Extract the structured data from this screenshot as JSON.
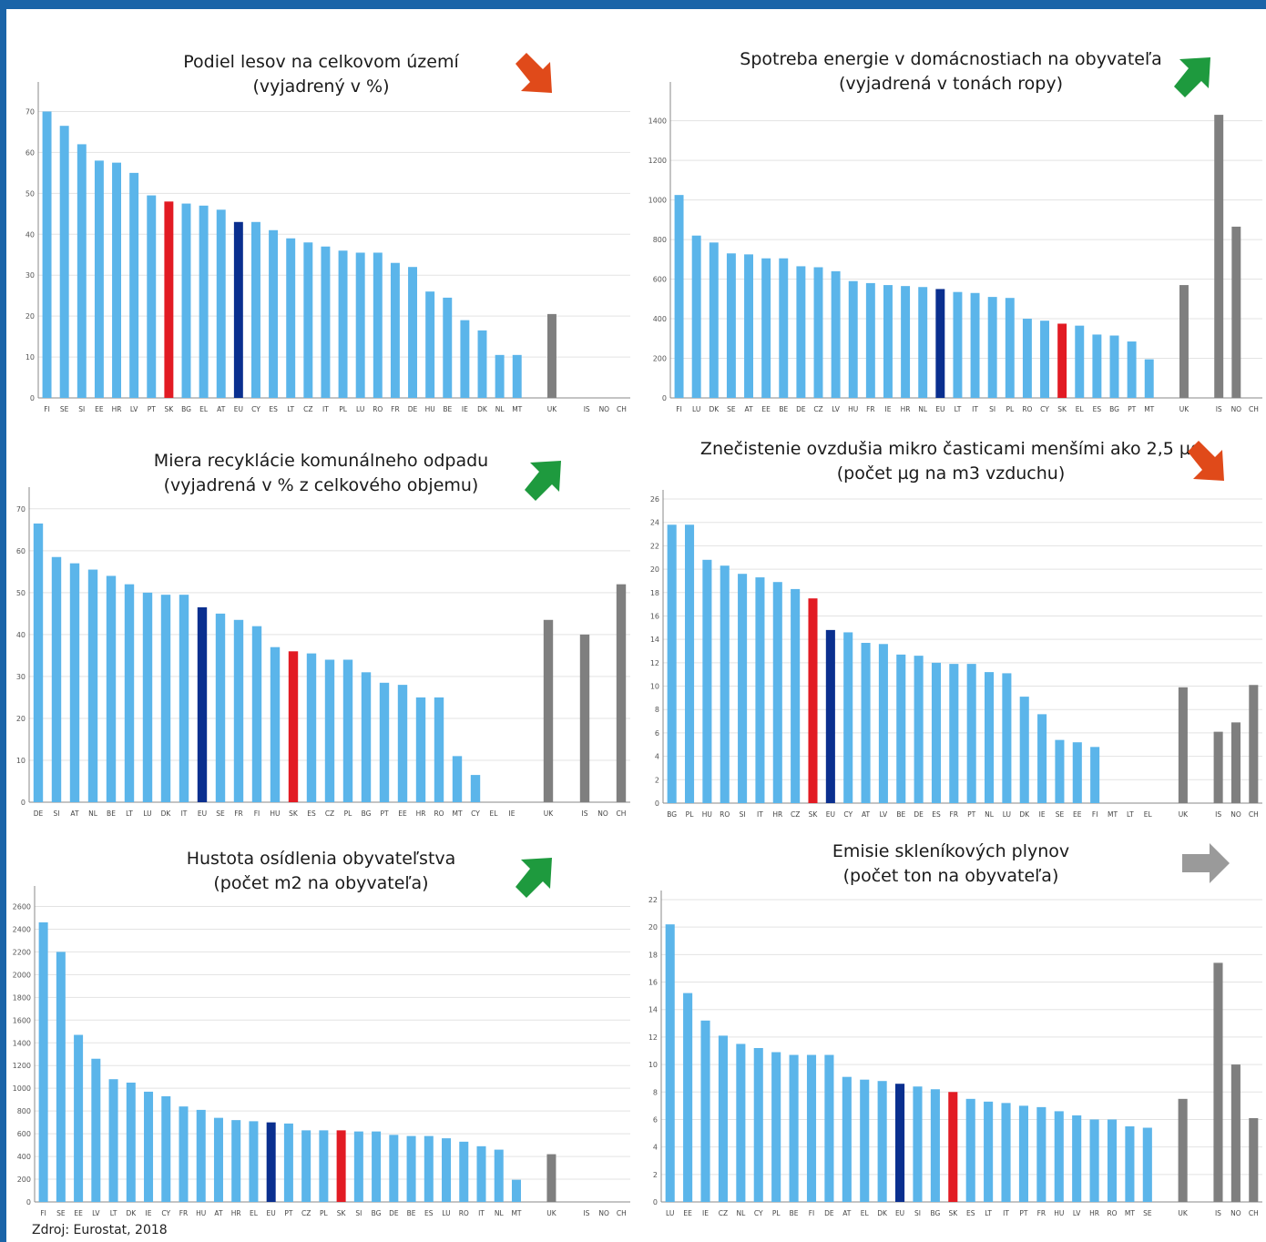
{
  "source": "Zdroj: Eurostat, 2018",
  "colors": {
    "normal": "#5bb5ea",
    "highlight_sk": "#e21b23",
    "eu": "#0a2f8f",
    "non_eu": "#7f7f7f",
    "grid": "#e3e3e3",
    "axis": "#888888"
  },
  "panels": [
    {
      "title_line1": "Podiel lesov na celkovom území",
      "title_line2": "(vyjadrený v %)",
      "trend": "down",
      "trend_icon": "arrow-down-right-icon",
      "trend_color": "#e04a1a"
    },
    {
      "title_line1": "Spotreba energie v domácnostiach na obyvateľa",
      "title_line2": "(vyjadrená v tonách ropy)",
      "trend": "up",
      "trend_icon": "arrow-up-right-icon",
      "trend_color": "#1e9a3e"
    },
    {
      "title_line1": "Miera recyklácie komunálneho odpadu",
      "title_line2": "(vyjadrená v % z celkového objemu)",
      "trend": "up",
      "trend_icon": "arrow-up-right-icon",
      "trend_color": "#1e9a3e"
    },
    {
      "title_line1": "Znečistenie ovzdušia mikro časticami menšími ako 2,5 µg",
      "title_line2": "(počet µg na m3 vzduchu)",
      "trend": "down",
      "trend_icon": "arrow-down-right-icon",
      "trend_color": "#e04a1a"
    },
    {
      "title_line1": "Hustota osídlenia obyvateľstva",
      "title_line2": "(počet m2 na obyvateľa)",
      "trend": "up",
      "trend_icon": "arrow-up-right-icon",
      "trend_color": "#1e9a3e"
    },
    {
      "title_line1": "Emisie skleníkových plynov",
      "title_line2": "(počet ton na obyvateľa)",
      "trend": "right",
      "trend_icon": "arrow-right-icon",
      "trend_color": "#9a9a9a"
    }
  ],
  "chart_data": [
    {
      "type": "bar",
      "title": "Podiel lesov na celkovom území (vyjadrený v %)",
      "ylim": [
        0,
        75
      ],
      "yticks": [
        0,
        10,
        20,
        30,
        40,
        50,
        60,
        70
      ],
      "categories": [
        "FI",
        "SE",
        "SI",
        "EE",
        "HR",
        "LV",
        "PT",
        "SK",
        "BG",
        "EL",
        "AT",
        "EU",
        "CY",
        "ES",
        "LT",
        "CZ",
        "IT",
        "PL",
        "LU",
        "RO",
        "FR",
        "DE",
        "HU",
        "BE",
        "IE",
        "DK",
        "NL",
        "MT",
        "",
        "UK",
        "",
        "IS",
        "NO",
        "CH"
      ],
      "values": [
        70,
        66.5,
        62,
        58,
        57.5,
        55,
        49.5,
        48,
        47.5,
        47,
        46,
        43,
        43,
        41,
        39,
        38,
        37,
        36,
        35.5,
        35.5,
        33,
        32,
        26,
        24.5,
        19,
        16.5,
        10.5,
        10.5,
        null,
        20.5,
        null,
        null,
        null,
        null
      ],
      "highlights": {
        "SK": "highlight_sk",
        "EU": "eu",
        "UK": "non_eu",
        "IS": "non_eu",
        "NO": "non_eu",
        "CH": "non_eu"
      }
    },
    {
      "type": "bar",
      "title": "Spotreba energie v domácnostiach na obyvateľa (vyjadrená v tonách ropy)",
      "ylim": [
        0,
        1550
      ],
      "yticks": [
        0,
        200,
        400,
        600,
        800,
        1000,
        1200,
        1400
      ],
      "categories": [
        "FI",
        "LU",
        "DK",
        "SE",
        "AT",
        "EE",
        "BE",
        "DE",
        "CZ",
        "LV",
        "HU",
        "FR",
        "IE",
        "HR",
        "NL",
        "EU",
        "LT",
        "IT",
        "SI",
        "PL",
        "RO",
        "CY",
        "SK",
        "EL",
        "ES",
        "BG",
        "PT",
        "MT",
        "",
        "UK",
        "",
        "IS",
        "NO",
        "CH"
      ],
      "values": [
        1025,
        820,
        785,
        730,
        725,
        705,
        705,
        665,
        660,
        640,
        590,
        580,
        570,
        565,
        560,
        550,
        535,
        530,
        510,
        505,
        400,
        390,
        375,
        365,
        320,
        315,
        285,
        195,
        null,
        570,
        null,
        1430,
        865,
        null
      ],
      "highlights": {
        "SK": "highlight_sk",
        "EU": "eu",
        "UK": "non_eu",
        "IS": "non_eu",
        "NO": "non_eu",
        "CH": "non_eu"
      }
    },
    {
      "type": "bar",
      "title": "Miera recyklácie komunálneho odpadu (vyjadrená v % z celkového objemu)",
      "ylim": [
        0,
        73
      ],
      "yticks": [
        0,
        10,
        20,
        30,
        40,
        50,
        60,
        70
      ],
      "categories": [
        "DE",
        "SI",
        "AT",
        "NL",
        "BE",
        "LT",
        "LU",
        "DK",
        "IT",
        "EU",
        "SE",
        "FR",
        "FI",
        "HU",
        "SK",
        "ES",
        "CZ",
        "PL",
        "BG",
        "PT",
        "EE",
        "HR",
        "RO",
        "MT",
        "CY",
        "EL",
        "IE",
        "",
        "UK",
        "",
        "IS",
        "NO",
        "CH"
      ],
      "values": [
        66.5,
        58.5,
        57,
        55.5,
        54,
        52,
        50,
        49.5,
        49.5,
        46.5,
        45,
        43.5,
        42,
        37,
        36,
        35.5,
        34,
        34,
        31,
        28.5,
        28,
        25,
        25,
        11,
        6.5,
        null,
        null,
        null,
        43.5,
        null,
        40,
        null,
        52
      ],
      "highlights": {
        "SK": "highlight_sk",
        "EU": "eu",
        "UK": "non_eu",
        "IS": "non_eu",
        "NO": "non_eu",
        "CH": "non_eu"
      }
    },
    {
      "type": "bar",
      "title": "Znečistenie ovzdušia mikro časticami menšími ako 2,5 µg (počet µg na m3 vzduchu)",
      "ylim": [
        0,
        26
      ],
      "yticks": [
        0,
        2,
        4,
        6,
        8,
        10,
        12,
        14,
        16,
        18,
        20,
        22,
        24,
        26
      ],
      "categories": [
        "BG",
        "PL",
        "HU",
        "RO",
        "SI",
        "IT",
        "HR",
        "CZ",
        "SK",
        "EU",
        "CY",
        "AT",
        "LV",
        "BE",
        "DE",
        "ES",
        "FR",
        "PT",
        "NL",
        "LU",
        "DK",
        "IE",
        "SE",
        "EE",
        "FI",
        "MT",
        "LT",
        "EL",
        "",
        "UK",
        "",
        "IS",
        "NO",
        "CH"
      ],
      "values": [
        23.8,
        23.8,
        20.8,
        20.3,
        19.6,
        19.3,
        18.9,
        18.3,
        17.5,
        14.8,
        14.6,
        13.7,
        13.6,
        12.7,
        12.6,
        12,
        11.9,
        11.9,
        11.2,
        11.1,
        9.1,
        7.6,
        5.4,
        5.2,
        4.8,
        null,
        null,
        null,
        null,
        9.9,
        null,
        6.1,
        6.9,
        10.1
      ],
      "highlights": {
        "SK": "highlight_sk",
        "EU": "eu",
        "UK": "non_eu",
        "IS": "non_eu",
        "NO": "non_eu",
        "CH": "non_eu"
      }
    },
    {
      "type": "bar",
      "title": "Hustota osídlenia obyvateľstva (počet m2 na obyvateľa)",
      "ylim": [
        0,
        2700
      ],
      "yticks": [
        0,
        200,
        400,
        600,
        800,
        1000,
        1200,
        1400,
        1600,
        1800,
        2000,
        2200,
        2400,
        2600
      ],
      "categories": [
        "FI",
        "SE",
        "EE",
        "LV",
        "LT",
        "DK",
        "IE",
        "CY",
        "FR",
        "HU",
        "AT",
        "HR",
        "EL",
        "EU",
        "PT",
        "CZ",
        "PL",
        "SK",
        "SI",
        "BG",
        "DE",
        "BE",
        "ES",
        "LU",
        "RO",
        "IT",
        "NL",
        "MT",
        "",
        "UK",
        "",
        "IS",
        "NO",
        "CH"
      ],
      "values": [
        2460,
        2200,
        1470,
        1260,
        1080,
        1050,
        970,
        930,
        840,
        810,
        740,
        720,
        710,
        700,
        690,
        630,
        630,
        630,
        620,
        620,
        590,
        580,
        580,
        560,
        530,
        490,
        460,
        195,
        null,
        420,
        null,
        null,
        null,
        null
      ],
      "highlights": {
        "SK": "highlight_sk",
        "EU": "eu",
        "UK": "non_eu",
        "IS": "non_eu",
        "NO": "non_eu",
        "CH": "non_eu"
      }
    },
    {
      "type": "bar",
      "title": "Emisie skleníkových plynov (počet ton na obyvateľa)",
      "ylim": [
        0,
        22
      ],
      "yticks": [
        0,
        2,
        4,
        6,
        8,
        10,
        12,
        14,
        16,
        18,
        20,
        22
      ],
      "categories": [
        "LU",
        "EE",
        "IE",
        "CZ",
        "NL",
        "CY",
        "PL",
        "BE",
        "FI",
        "DE",
        "AT",
        "EL",
        "DK",
        "EU",
        "SI",
        "BG",
        "SK",
        "ES",
        "LT",
        "IT",
        "PT",
        "FR",
        "HU",
        "LV",
        "HR",
        "RO",
        "MT",
        "SE",
        "",
        "UK",
        "",
        "IS",
        "NO",
        "CH"
      ],
      "values": [
        20.2,
        15.2,
        13.2,
        12.1,
        11.5,
        11.2,
        10.9,
        10.7,
        10.7,
        10.7,
        9.1,
        8.9,
        8.8,
        8.6,
        8.4,
        8.2,
        8,
        7.5,
        7.3,
        7.2,
        7,
        6.9,
        6.6,
        6.3,
        6,
        6,
        5.5,
        5.4,
        null,
        7.5,
        null,
        17.4,
        10,
        6.1
      ],
      "highlights": {
        "SK": "highlight_sk",
        "EU": "eu",
        "UK": "non_eu",
        "IS": "non_eu",
        "NO": "non_eu",
        "CH": "non_eu"
      }
    }
  ]
}
